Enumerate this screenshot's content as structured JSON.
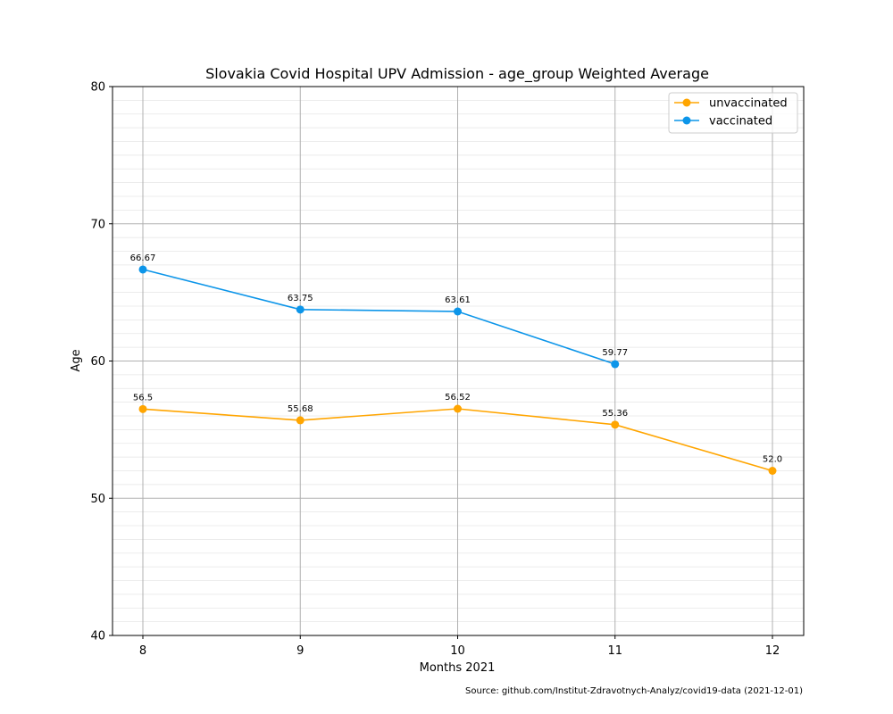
{
  "chart_data": {
    "type": "line",
    "title": "Slovakia Covid Hospital UPV Admission - age_group Weighted Average",
    "xlabel": "Months 2021",
    "ylabel": "Age",
    "x": [
      8,
      9,
      10,
      11,
      12
    ],
    "x_tick_labels": [
      "8",
      "9",
      "10",
      "11",
      "12"
    ],
    "y_ticks": [
      40,
      50,
      60,
      70,
      80
    ],
    "y_tick_labels": [
      "40",
      "50",
      "60",
      "70",
      "80"
    ],
    "ylim": [
      40,
      80
    ],
    "grid": true,
    "legend_position": "top-right",
    "series": [
      {
        "name": "unvaccinated",
        "color": "#ffa500",
        "x": [
          8,
          9,
          10,
          11,
          12
        ],
        "values": [
          56.5,
          55.68,
          56.52,
          55.36,
          52.0
        ],
        "labels": [
          "56.5",
          "55.68",
          "56.52",
          "55.36",
          "52.0"
        ]
      },
      {
        "name": "vaccinated",
        "color": "#0c95e9",
        "x": [
          8,
          9,
          10,
          11
        ],
        "values": [
          66.67,
          63.75,
          63.61,
          59.77
        ],
        "labels": [
          "66.67",
          "63.75",
          "63.61",
          "59.77"
        ]
      }
    ]
  },
  "source_note": "Source: github.com/Institut-Zdravotnych-Analyz/covid19-data (2021-12-01)"
}
